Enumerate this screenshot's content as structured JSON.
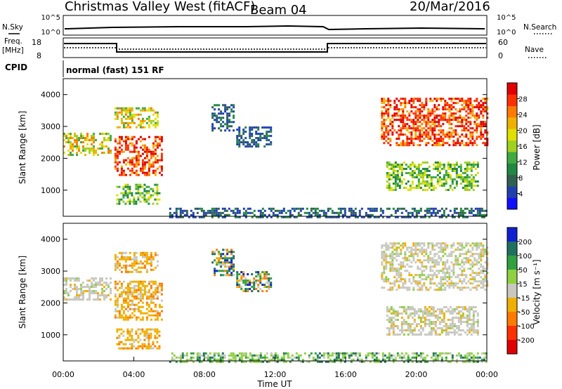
{
  "header": {
    "station": "Christmas Valley West",
    "fit": "(fitACF)",
    "beam": "Beam 04",
    "date": "20/Mar/2016"
  },
  "params": {
    "noise_label": "N.Sky",
    "noise_search_label": "N.Search",
    "freq_label": "Freq.",
    "freq_unit": "[MHz]",
    "nave_label": "Nave",
    "cpid_label": "CPID",
    "noise_left_ticks": [
      "10^5",
      "10^0"
    ],
    "noise_right_ticks": [
      "10^5",
      "10^0"
    ],
    "freq_ticks": [
      "18",
      "8"
    ],
    "nave_ticks": [
      "60",
      "0"
    ],
    "cpid_text": "normal (fast) 151 RF"
  },
  "chart_data": [
    {
      "type": "heatmap",
      "name": "power",
      "ylabel": "Slant Range [km]",
      "ylim": [
        180,
        4500
      ],
      "yticks": [
        "1000",
        "2000",
        "3000",
        "4000"
      ],
      "xlim": [
        "00:00",
        "24:00"
      ],
      "cbar_label": "Power [dB]",
      "cbar_ticks": [
        "4",
        "8",
        "12",
        "16",
        "20",
        "24",
        "28"
      ],
      "cbar_colors": [
        "#1010ff",
        "#2040b0",
        "#306050",
        "#208840",
        "#40aa40",
        "#a0d020",
        "#e0e000",
        "#f0b000",
        "#ff7a00",
        "#ff3000",
        "#e00000"
      ],
      "echo_regions": [
        {
          "t": [
            0.0,
            2.7
          ],
          "r": [
            2100,
            2800
          ],
          "level": "mid-high"
        },
        {
          "t": [
            2.9,
            5.6
          ],
          "r": [
            1500,
            2700
          ],
          "level": "high"
        },
        {
          "t": [
            2.9,
            5.3
          ],
          "r": [
            3000,
            3600
          ],
          "level": "mid-high"
        },
        {
          "t": [
            3.0,
            5.5
          ],
          "r": [
            600,
            1200
          ],
          "level": "mid"
        },
        {
          "t": [
            8.4,
            9.6
          ],
          "r": [
            2900,
            3700
          ],
          "level": "low"
        },
        {
          "t": [
            9.8,
            11.8
          ],
          "r": [
            2400,
            3000
          ],
          "level": "low"
        },
        {
          "t": [
            18.0,
            24.0
          ],
          "r": [
            2400,
            3900
          ],
          "level": "high"
        },
        {
          "t": [
            18.3,
            23.5
          ],
          "r": [
            1000,
            1900
          ],
          "level": "mid"
        },
        {
          "t": [
            6.0,
            24.0
          ],
          "r": [
            180,
            450
          ],
          "level": "low"
        }
      ]
    },
    {
      "type": "heatmap",
      "name": "velocity",
      "ylabel": "Slant Range [km]",
      "ylim": [
        180,
        4500
      ],
      "yticks": [
        "1000",
        "2000",
        "3000",
        "4000"
      ],
      "xlim": [
        "00:00",
        "24:00"
      ],
      "xticks": [
        "00:00",
        "04:00",
        "08:00",
        "12:00",
        "16:00",
        "20:00",
        "00:00"
      ],
      "xlabel": "Time UT",
      "cbar_label": "Velocity [m s⁻¹]",
      "cbar_ticks": [
        "200",
        "100",
        "50",
        "15",
        "-15",
        "-50",
        "-100",
        "-200"
      ],
      "cbar_colors": [
        "#1020d0",
        "#207060",
        "#30a040",
        "#90d040",
        "#c8c8c0",
        "#f0b000",
        "#ff7a00",
        "#ff3000",
        "#e00000"
      ],
      "echo_regions": [
        {
          "t": [
            0.0,
            2.7
          ],
          "r": [
            2100,
            2800
          ],
          "level": "ground"
        },
        {
          "t": [
            2.9,
            5.6
          ],
          "r": [
            1500,
            2700
          ],
          "level": "neg"
        },
        {
          "t": [
            2.9,
            5.3
          ],
          "r": [
            3000,
            3600
          ],
          "level": "neg"
        },
        {
          "t": [
            3.0,
            5.5
          ],
          "r": [
            600,
            1200
          ],
          "level": "neg"
        },
        {
          "t": [
            8.4,
            9.6
          ],
          "r": [
            2900,
            3700
          ],
          "level": "mixed"
        },
        {
          "t": [
            9.8,
            11.8
          ],
          "r": [
            2400,
            3000
          ],
          "level": "mixed"
        },
        {
          "t": [
            18.0,
            24.0
          ],
          "r": [
            2400,
            3900
          ],
          "level": "ground"
        },
        {
          "t": [
            18.3,
            23.5
          ],
          "r": [
            1000,
            1900
          ],
          "level": "ground"
        },
        {
          "t": [
            6.0,
            24.0
          ],
          "r": [
            180,
            450
          ],
          "level": "pos"
        }
      ]
    }
  ]
}
